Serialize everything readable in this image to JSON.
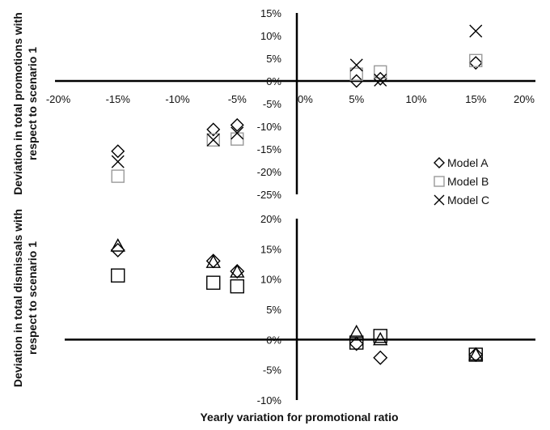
{
  "chart_data": [
    {
      "type": "scatter",
      "title": "",
      "xlabel": "",
      "ylabel": "Deviation in total promotions with respect to scenario 1",
      "xlim": [
        -0.2,
        0.2
      ],
      "ylim": [
        -0.25,
        0.15
      ],
      "x_ticks": [
        "-20%",
        "-15%",
        "-10%",
        "-5%",
        "0%",
        "5%",
        "10%",
        "15%",
        "20%"
      ],
      "y_ticks": [
        "15%",
        "10%",
        "5%",
        "0%",
        "-5%",
        "-10%",
        "-15%",
        "-20%",
        "-25%"
      ],
      "legend_position": "right",
      "series": [
        {
          "name": "Model A",
          "marker": "diamond",
          "color": "#000000",
          "x": [
            -0.15,
            -0.07,
            -0.05,
            0.05,
            0.07,
            0.15
          ],
          "y": [
            -0.155,
            -0.107,
            -0.097,
            0.0,
            0.005,
            0.04
          ]
        },
        {
          "name": "Model B",
          "marker": "square",
          "color": "#999999",
          "x": [
            -0.15,
            -0.07,
            -0.05,
            0.05,
            0.07,
            0.15
          ],
          "y": [
            -0.21,
            -0.13,
            -0.128,
            0.015,
            0.02,
            0.045
          ]
        },
        {
          "name": "Model C",
          "marker": "x",
          "color": "#000000",
          "x": [
            -0.15,
            -0.07,
            -0.05,
            0.05,
            0.07,
            0.15
          ],
          "y": [
            -0.178,
            -0.13,
            -0.115,
            0.035,
            0.002,
            0.11
          ]
        }
      ]
    },
    {
      "type": "scatter",
      "title": "",
      "xlabel": "Yearly variation for promotional ratio",
      "ylabel": "Deviation in total dismissals with respect to scenario 1",
      "xlim": [
        -0.2,
        0.2
      ],
      "ylim": [
        -0.1,
        0.2
      ],
      "y_ticks": [
        "20%",
        "15%",
        "10%",
        "5%",
        "0%",
        "-5%",
        "-10%"
      ],
      "series": [
        {
          "marker": "diamond",
          "color": "#000000",
          "x": [
            -0.15,
            -0.07,
            -0.05,
            0.05,
            0.07,
            0.15
          ],
          "y": [
            0.148,
            0.13,
            0.113,
            -0.007,
            -0.03,
            -0.025
          ]
        },
        {
          "marker": "square",
          "color": "#000000",
          "x": [
            -0.15,
            -0.07,
            -0.05,
            0.05,
            0.07,
            0.15
          ],
          "y": [
            0.106,
            0.094,
            0.088,
            -0.005,
            0.006,
            -0.025
          ]
        },
        {
          "marker": "triangle",
          "color": "#000000",
          "x": [
            -0.15,
            -0.07,
            -0.05,
            0.05,
            0.07,
            0.15
          ],
          "y": [
            0.155,
            0.128,
            0.112,
            0.012,
            0.0,
            -0.025
          ]
        }
      ]
    }
  ]
}
